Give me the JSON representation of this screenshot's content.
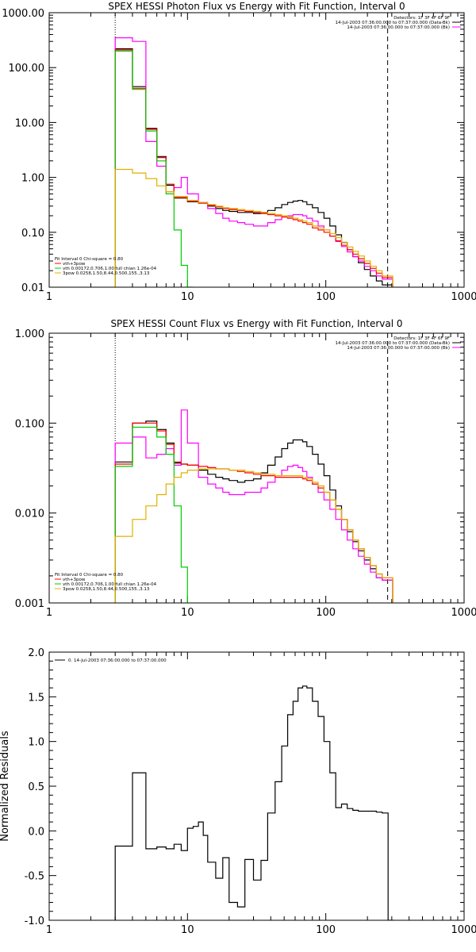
{
  "chart_data": [
    {
      "type": "line",
      "title": "SPEX HESSI Photon Flux vs Energy with Fit Function, Interval 0",
      "ylabel": "",
      "xscale": "log",
      "yscale": "log",
      "xlim": [
        1,
        1000
      ],
      "ylim": [
        0.01,
        1000
      ],
      "xticks": [
        "1",
        "10",
        "100",
        "1000"
      ],
      "yticks": [
        "0.01",
        "0.10",
        "1.00",
        "10.00",
        "100.00",
        "1000.00"
      ],
      "legend_right": [
        "Detectors: 1F 3F 4F 6F 9F",
        "14-Jul-2003 07:36:00.000 to 07:37:00.000 (Data-Bk)",
        "14-Jul-2003 07:36:00.000 to 07:37:00.000 (Bk)"
      ],
      "legend_left": [
        "Fit Interval 0   Chi-square = 0.80",
        "vth+3pow",
        "vth 0.00172,0.706,1.00  full chian 1.26e-04",
        "3pow 0.0258,1.50,8.44,0.500,155.,3.13"
      ],
      "vlines": {
        "dotted": 3,
        "dashed": 280
      },
      "series": [
        {
          "name": "Data-Bk",
          "color": "#000000",
          "step": true,
          "x": [
            3,
            4,
            5,
            6,
            7,
            8,
            10,
            12,
            14,
            16,
            18,
            20,
            23,
            26,
            30,
            34,
            38,
            43,
            48,
            53,
            58,
            63,
            68,
            73,
            80,
            88,
            97,
            107,
            118,
            130,
            143,
            157,
            172,
            190,
            210,
            232,
            256,
            282
          ],
          "y": [
            220,
            45,
            7.8,
            2.4,
            0.72,
            0.42,
            0.36,
            0.34,
            0.3,
            0.27,
            0.25,
            0.24,
            0.23,
            0.23,
            0.22,
            0.23,
            0.25,
            0.28,
            0.32,
            0.35,
            0.37,
            0.38,
            0.36,
            0.32,
            0.28,
            0.23,
            0.18,
            0.13,
            0.09,
            0.065,
            0.048,
            0.036,
            0.028,
            0.021,
            0.016,
            0.013,
            0.011,
            0.011
          ]
        },
        {
          "name": "Bk",
          "color": "#ff00ff",
          "step": true,
          "x": [
            3,
            4,
            5,
            6,
            7,
            8,
            9,
            10,
            12,
            14,
            16,
            18,
            20,
            23,
            26,
            30,
            34,
            38,
            43,
            48,
            53,
            58,
            63,
            68,
            73,
            80,
            88,
            97,
            107,
            118,
            130,
            143,
            157,
            172,
            190,
            210,
            232,
            256,
            282
          ],
          "y": [
            350,
            300,
            4.5,
            1.6,
            0.55,
            0.65,
            1.0,
            0.5,
            0.35,
            0.27,
            0.22,
            0.18,
            0.16,
            0.15,
            0.14,
            0.13,
            0.13,
            0.15,
            0.17,
            0.19,
            0.2,
            0.21,
            0.21,
            0.2,
            0.18,
            0.16,
            0.13,
            0.11,
            0.085,
            0.068,
            0.055,
            0.044,
            0.036,
            0.03,
            0.024,
            0.02,
            0.016,
            0.014,
            0.014
          ]
        },
        {
          "name": "vth+3pow",
          "color": "#ff0000",
          "step": true,
          "x": [
            3,
            4,
            5,
            6,
            7,
            8,
            10,
            12,
            14,
            16,
            18,
            20,
            23,
            26,
            30,
            34,
            38,
            43,
            48,
            53,
            58,
            63,
            68,
            73,
            80,
            88,
            97,
            107,
            118,
            130,
            143,
            157,
            172,
            190,
            210,
            232,
            256,
            282
          ],
          "y": [
            210,
            42,
            7.5,
            2.3,
            0.75,
            0.43,
            0.37,
            0.34,
            0.31,
            0.29,
            0.27,
            0.26,
            0.25,
            0.24,
            0.23,
            0.22,
            0.21,
            0.2,
            0.19,
            0.18,
            0.17,
            0.16,
            0.15,
            0.14,
            0.12,
            0.11,
            0.1,
            0.085,
            0.07,
            0.058,
            0.048,
            0.04,
            0.033,
            0.027,
            0.022,
            0.018,
            0.015,
            0.015
          ]
        },
        {
          "name": "vth",
          "color": "#00cc00",
          "step": true,
          "x": [
            3,
            4,
            5,
            6,
            7,
            8,
            9,
            10
          ],
          "y": [
            200,
            40,
            7.0,
            2.0,
            0.5,
            0.11,
            0.025,
            0.01
          ]
        },
        {
          "name": "3pow",
          "color": "#e0b000",
          "step": true,
          "x": [
            3,
            4,
            5,
            6,
            7,
            8,
            10,
            12,
            14,
            16,
            18,
            20,
            23,
            26,
            30,
            34,
            38,
            43,
            48,
            53,
            58,
            63,
            68,
            73,
            80,
            88,
            97,
            107,
            118,
            130,
            143,
            157,
            172,
            190,
            210,
            232,
            256,
            282
          ],
          "y": [
            1.4,
            1.2,
            0.95,
            0.7,
            0.55,
            0.45,
            0.38,
            0.35,
            0.32,
            0.3,
            0.28,
            0.27,
            0.26,
            0.25,
            0.24,
            0.23,
            0.22,
            0.21,
            0.2,
            0.19,
            0.18,
            0.17,
            0.16,
            0.15,
            0.13,
            0.12,
            0.11,
            0.095,
            0.08,
            0.066,
            0.054,
            0.045,
            0.037,
            0.03,
            0.024,
            0.02,
            0.016,
            0.016
          ]
        }
      ]
    },
    {
      "type": "line",
      "title": "SPEX HESSI Count Flux vs Energy with Fit Function, Interval 0",
      "ylabel": "",
      "xscale": "log",
      "yscale": "log",
      "xlim": [
        1,
        1000
      ],
      "ylim": [
        0.001,
        1
      ],
      "xticks": [
        "1",
        "10",
        "100",
        "1000"
      ],
      "yticks": [
        "0.001",
        "0.010",
        "0.100",
        "1.000"
      ],
      "legend_right": [
        "Detectors: 1F 3F 4F 6F 9F",
        "14-Jul-2003 07:36:00.000 to 07:37:00.000 (Data-Bk)",
        "14-Jul-2003 07:36:00.000 to 07:37:00.000 (Bk)"
      ],
      "legend_left": [
        "Fit Interval 0   Chi-square = 0.80",
        "vth+3pow",
        "vth 0.00172,0.706,1.00  full chian 1.26e-04",
        "3pow 0.0258,1.50,8.44,0.500,155.,3.13"
      ],
      "vlines": {
        "dotted": 3,
        "dashed": 280
      },
      "series": [
        {
          "name": "Data-Bk",
          "color": "#000000",
          "step": true,
          "x": [
            3,
            4,
            5,
            6,
            7,
            8,
            9,
            10,
            12,
            14,
            16,
            18,
            20,
            23,
            26,
            30,
            34,
            38,
            43,
            48,
            53,
            58,
            63,
            68,
            73,
            80,
            88,
            97,
            107,
            118,
            130,
            143,
            157,
            172,
            190,
            210,
            232,
            256,
            282
          ],
          "y": [
            0.037,
            0.1,
            0.105,
            0.085,
            0.06,
            0.036,
            0.035,
            0.034,
            0.03,
            0.027,
            0.025,
            0.024,
            0.023,
            0.022,
            0.023,
            0.024,
            0.028,
            0.034,
            0.042,
            0.052,
            0.06,
            0.065,
            0.065,
            0.062,
            0.055,
            0.045,
            0.035,
            0.026,
            0.018,
            0.012,
            0.0085,
            0.0062,
            0.0048,
            0.0038,
            0.003,
            0.0024,
            0.0019,
            0.0018,
            0.0018
          ]
        },
        {
          "name": "Bk",
          "color": "#ff00ff",
          "step": true,
          "x": [
            3,
            4,
            5,
            6,
            7,
            8,
            9,
            10,
            12,
            14,
            16,
            18,
            20,
            23,
            26,
            30,
            34,
            38,
            43,
            48,
            53,
            58,
            63,
            68,
            73,
            80,
            88,
            97,
            107,
            118,
            130,
            143,
            157,
            172,
            190,
            210,
            232,
            256,
            282
          ],
          "y": [
            0.06,
            0.07,
            0.041,
            0.045,
            0.052,
            0.034,
            0.14,
            0.06,
            0.025,
            0.021,
            0.019,
            0.017,
            0.016,
            0.016,
            0.017,
            0.017,
            0.019,
            0.022,
            0.026,
            0.03,
            0.033,
            0.034,
            0.032,
            0.029,
            0.025,
            0.021,
            0.017,
            0.014,
            0.011,
            0.0085,
            0.0065,
            0.005,
            0.004,
            0.0033,
            0.0027,
            0.0022,
            0.0019,
            0.0018,
            0.0018
          ]
        },
        {
          "name": "vth+3pow",
          "color": "#ff0000",
          "step": true,
          "x": [
            3,
            4,
            5,
            6,
            7,
            8,
            9,
            10,
            12,
            14,
            16,
            18,
            20,
            23,
            26,
            30,
            34,
            38,
            43,
            48,
            53,
            58,
            63,
            68,
            73,
            80,
            88,
            97,
            107,
            118,
            130,
            143,
            157,
            172,
            190,
            210,
            232,
            256,
            282
          ],
          "y": [
            0.035,
            0.1,
            0.1,
            0.082,
            0.058,
            0.037,
            0.035,
            0.034,
            0.033,
            0.032,
            0.031,
            0.031,
            0.03,
            0.029,
            0.028,
            0.027,
            0.026,
            0.026,
            0.025,
            0.025,
            0.025,
            0.025,
            0.025,
            0.024,
            0.023,
            0.021,
            0.019,
            0.017,
            0.014,
            0.011,
            0.0085,
            0.0065,
            0.005,
            0.004,
            0.0032,
            0.0026,
            0.0021,
            0.0019,
            0.0019
          ]
        },
        {
          "name": "vth",
          "color": "#00cc00",
          "step": true,
          "x": [
            3,
            4,
            5,
            6,
            7,
            8,
            9,
            10
          ],
          "y": [
            0.033,
            0.09,
            0.09,
            0.07,
            0.045,
            0.012,
            0.0025,
            0.0008
          ]
        },
        {
          "name": "3pow",
          "color": "#e0b000",
          "step": true,
          "x": [
            3,
            4,
            5,
            6,
            7,
            8,
            9,
            10,
            12,
            14,
            16,
            18,
            20,
            23,
            26,
            30,
            34,
            38,
            43,
            48,
            53,
            58,
            63,
            68,
            73,
            80,
            88,
            97,
            107,
            118,
            130,
            143,
            157,
            172,
            190,
            210,
            232,
            256,
            282
          ],
          "y": [
            0.0055,
            0.0085,
            0.012,
            0.016,
            0.021,
            0.025,
            0.028,
            0.03,
            0.031,
            0.031,
            0.031,
            0.031,
            0.03,
            0.03,
            0.029,
            0.028,
            0.027,
            0.027,
            0.026,
            0.026,
            0.026,
            0.026,
            0.026,
            0.025,
            0.024,
            0.022,
            0.02,
            0.017,
            0.014,
            0.011,
            0.0085,
            0.0065,
            0.005,
            0.004,
            0.0032,
            0.0026,
            0.0021,
            0.0019,
            0.0019
          ]
        }
      ]
    },
    {
      "type": "line",
      "title": "",
      "ylabel": "Normalized Residuals",
      "xscale": "log",
      "yscale": "linear",
      "xlim": [
        1,
        1000
      ],
      "ylim": [
        -1.0,
        2.0
      ],
      "xticks": [
        "1",
        "10",
        "100",
        "1000"
      ],
      "yticks": [
        "-1.0",
        "-0.5",
        "0.0",
        "0.5",
        "1.0",
        "1.5",
        "2.0"
      ],
      "legend_left": [
        "0. 14-Jul-2003 07:36:00.000 to 07:37:00.000"
      ],
      "series": [
        {
          "name": "0. 14-Jul-2003 07:36:00.000 to 07:37:00.000",
          "color": "#000000",
          "step": true,
          "x": [
            3,
            4,
            5,
            6,
            7,
            8,
            9,
            10,
            11,
            12,
            13,
            14,
            16,
            18,
            20,
            23,
            26,
            30,
            34,
            38,
            43,
            48,
            53,
            58,
            63,
            68,
            73,
            80,
            88,
            97,
            107,
            118,
            130,
            143,
            157,
            172,
            190,
            210,
            232,
            256,
            282
          ],
          "y": [
            -0.17,
            0.65,
            -0.2,
            -0.18,
            -0.2,
            -0.15,
            -0.22,
            0.03,
            0.05,
            0.1,
            -0.05,
            -0.35,
            -0.53,
            -0.3,
            -0.8,
            -0.85,
            -0.32,
            -0.55,
            -0.33,
            0.2,
            0.55,
            0.95,
            1.3,
            1.45,
            1.6,
            1.62,
            1.6,
            1.45,
            1.28,
            1.0,
            0.65,
            0.26,
            0.3,
            0.25,
            0.23,
            0.22,
            0.22,
            0.22,
            0.21,
            0.2,
            -1.0
          ]
        }
      ]
    }
  ]
}
